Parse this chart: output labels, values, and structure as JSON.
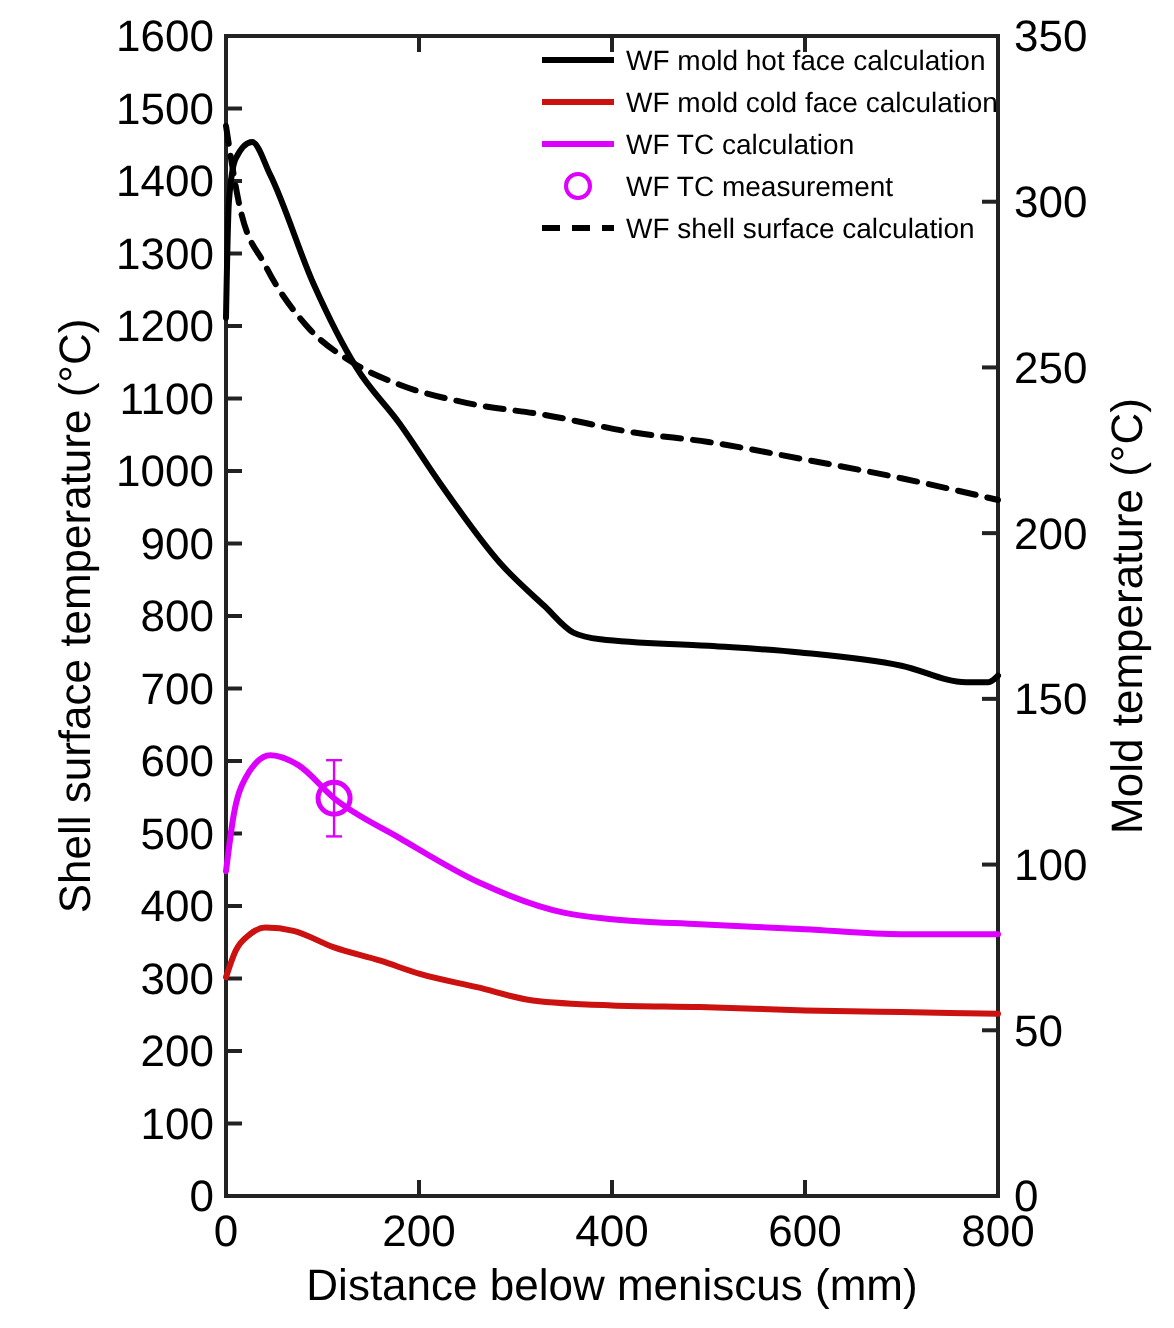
{
  "chart_data": {
    "type": "line",
    "xlabel": "Distance below meniscus (mm)",
    "ylabel": "Shell surface temperature (°C)",
    "y2label": "Mold temperature (°C)",
    "xlim": [
      0,
      800
    ],
    "xticks": [
      0,
      200,
      400,
      600,
      800
    ],
    "ylim": [
      0,
      1600
    ],
    "yticks": [
      0,
      100,
      200,
      300,
      400,
      500,
      600,
      700,
      800,
      900,
      1000,
      1100,
      1200,
      1300,
      1400,
      1500,
      1600
    ],
    "y2lim": [
      0,
      350
    ],
    "y2ticks": [
      0,
      50,
      100,
      150,
      200,
      250,
      300,
      350
    ],
    "legend": "top right",
    "grid": false,
    "line_style": "solid",
    "series": [
      {
        "name": "WF mold hot face calculation",
        "color": "#000000",
        "axis": "y2",
        "x": [
          0,
          3,
          10,
          27,
          46,
          91,
          135,
          180,
          222,
          284,
          330,
          360,
          388,
          500,
          595,
          700,
          767,
          790,
          800
        ],
        "values": [
          265,
          300,
          313,
          318,
          308,
          275,
          250,
          233,
          215,
          191,
          178,
          170,
          168,
          166,
          164,
          160,
          155,
          155,
          157
        ]
      },
      {
        "name": "WF mold cold face calculation",
        "color": "#cc1111",
        "axis": "y2",
        "x": [
          0,
          10,
          25,
          41,
          70,
          112,
          160,
          201,
          260,
          318,
          400,
          491,
          600,
          700,
          800
        ],
        "values": [
          66,
          74,
          79,
          81,
          80,
          75,
          71,
          67,
          63,
          59,
          57.5,
          57,
          56,
          55.5,
          55
        ]
      },
      {
        "name": "WF TC calculation",
        "color": "#dd00ff",
        "axis": "y2",
        "x": [
          0,
          8,
          20,
          46,
          75,
          112,
          180,
          263,
          350,
          400,
          491,
          600,
          700,
          800
        ],
        "values": [
          98,
          115,
          126,
          133,
          130,
          120,
          108,
          94.5,
          85.5,
          83.5,
          82,
          80.5,
          79,
          79
        ]
      },
      {
        "name": "WF TC measurement",
        "type": "scatter",
        "marker": "circle",
        "color": "#dd00ff",
        "axis": "y2",
        "x": [
          112
        ],
        "values": [
          120
        ],
        "errors": [
          11.5
        ]
      },
      {
        "name": "WF shell surface calculation",
        "color": "#000000",
        "line_style": "dashed",
        "axis": "y",
        "x": [
          0,
          14,
          41,
          83,
          132,
          180,
          249,
          332,
          423,
          500,
          595,
          700,
          800
        ],
        "values": [
          1476,
          1366,
          1283,
          1201,
          1149,
          1119,
          1094,
          1077,
          1053,
          1040,
          1017,
          990,
          960
        ]
      }
    ]
  }
}
